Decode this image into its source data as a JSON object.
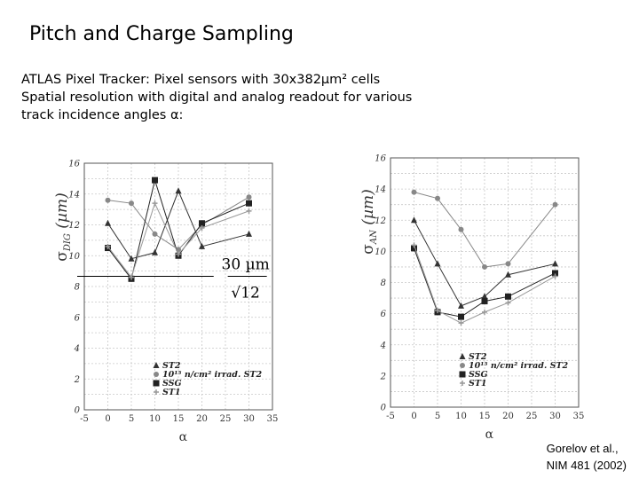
{
  "slide": {
    "title": "Pitch and Charge Sampling",
    "description": [
      "ATLAS Pixel Tracker: Pixel sensors with 30x382µm² cells",
      "Spatial resolution with digital and analog readout for various",
      "track incidence angles α:"
    ],
    "citation": [
      "Gorelov et al.,",
      "NIM 481 (2002)"
    ]
  },
  "chart_data": [
    {
      "type": "line",
      "ylabel": "σDIG (µm)",
      "xlabel": "α",
      "xlim": [
        -5,
        35
      ],
      "ylim": [
        0,
        16
      ],
      "xticks": [
        -5,
        0,
        5,
        10,
        15,
        20,
        25,
        30,
        35
      ],
      "yticks": [
        0,
        2,
        4,
        6,
        8,
        10,
        12,
        14,
        16
      ],
      "grid": true,
      "legend": "bottom-center",
      "reference_line": {
        "y": 8.66,
        "label_top": "30 µm",
        "label_bottom": "√12"
      },
      "series": [
        {
          "name": "ST2",
          "marker": "triangle",
          "color": "#333333",
          "x": [
            0,
            5,
            10,
            15,
            20,
            30
          ],
          "y": [
            12.1,
            9.8,
            10.2,
            14.2,
            10.6,
            11.4
          ]
        },
        {
          "name": "10¹⁵ n/cm² irrad. ST2",
          "marker": "circle",
          "color": "#888888",
          "x": [
            0,
            5,
            10,
            15,
            20,
            30
          ],
          "y": [
            13.6,
            13.4,
            11.4,
            10.4,
            12.0,
            13.8
          ]
        },
        {
          "name": "SSG",
          "marker": "square",
          "color": "#222222",
          "x": [
            0,
            5,
            10,
            15,
            20,
            30
          ],
          "y": [
            10.5,
            8.5,
            14.9,
            10.0,
            12.1,
            13.4
          ]
        },
        {
          "name": "ST1",
          "marker": "cross",
          "color": "#999999",
          "x": [
            0,
            5,
            10,
            15,
            20,
            30
          ],
          "y": [
            10.6,
            8.6,
            13.4,
            10.1,
            11.8,
            12.9
          ]
        }
      ]
    },
    {
      "type": "line",
      "ylabel": "σAN (µm)",
      "xlabel": "α",
      "xlim": [
        -5,
        35
      ],
      "ylim": [
        0,
        16
      ],
      "xticks": [
        -5,
        0,
        5,
        10,
        15,
        20,
        25,
        30,
        35
      ],
      "yticks": [
        0,
        2,
        4,
        6,
        8,
        10,
        12,
        14,
        16
      ],
      "grid": true,
      "legend": "bottom-center",
      "series": [
        {
          "name": "ST2",
          "marker": "triangle",
          "color": "#333333",
          "x": [
            0,
            5,
            10,
            15,
            20,
            30
          ],
          "y": [
            12.0,
            9.2,
            6.5,
            7.1,
            8.5,
            9.2
          ]
        },
        {
          "name": "10¹⁵ n/cm² irrad. ST2",
          "marker": "circle",
          "color": "#888888",
          "x": [
            0,
            5,
            10,
            15,
            20,
            30
          ],
          "y": [
            13.8,
            13.4,
            11.4,
            9.0,
            9.2,
            13.0
          ]
        },
        {
          "name": "SSG",
          "marker": "square",
          "color": "#222222",
          "x": [
            0,
            5,
            10,
            15,
            20,
            30
          ],
          "y": [
            10.2,
            6.1,
            5.8,
            6.8,
            7.1,
            8.6
          ]
        },
        {
          "name": "ST1",
          "marker": "cross",
          "color": "#999999",
          "x": [
            0,
            5,
            10,
            15,
            20,
            30
          ],
          "y": [
            10.4,
            6.2,
            5.4,
            6.1,
            6.7,
            8.4
          ]
        }
      ]
    }
  ]
}
